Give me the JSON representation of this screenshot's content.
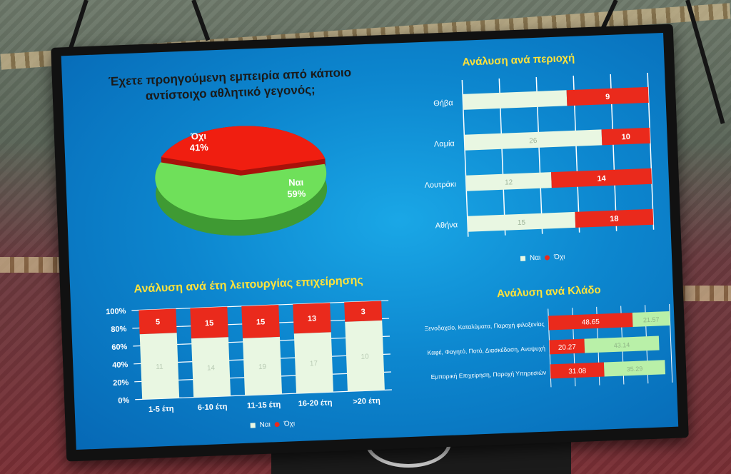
{
  "colors": {
    "yes": "#e9f7e2",
    "no": "#ea2a1c",
    "pie_yes": "#6fe05a",
    "pie_no": "#f01e10",
    "title_yellow": "#ffe23a",
    "grid": "#ffffff"
  },
  "pie": {
    "title_line1": "Έχετε προηγούμενη εμπειρία από κάποιο",
    "title_line2": "αντίστοιχο αθλητικό γεγονός;",
    "no_label": "Όχι",
    "no_value": "41%",
    "yes_label": "Ναι",
    "yes_value": "59%"
  },
  "region": {
    "title": "Ανάλυση ανά περιοχή",
    "legend_yes": "Ναι",
    "legend_no": "Όχι"
  },
  "years": {
    "title": "Ανάλυση ανά έτη λειτουργίας επιχείρησης",
    "legend_yes": "Ναι",
    "legend_no": "Όχι"
  },
  "sector": {
    "title": "Ανάλυση ανά Κλάδο"
  },
  "chart_data": [
    {
      "type": "pie",
      "title": "Έχετε προηγούμενη εμπειρία από κάποιο αντίστοιχο αθλητικό γεγονός;",
      "categories": [
        "Όχι",
        "Ναι"
      ],
      "values": [
        41,
        59
      ]
    },
    {
      "type": "bar",
      "orientation": "horizontal",
      "stacked": true,
      "title": "Ανάλυση ανά περιοχή",
      "categories": [
        "Θήβα",
        "Λαμία",
        "Λουτράκι",
        "Αθήνα"
      ],
      "series": [
        {
          "name": "Ναι",
          "values": [
            null,
            26,
            12,
            15
          ]
        },
        {
          "name": "Όχι",
          "values": [
            9,
            10,
            14,
            18
          ]
        }
      ],
      "bar_shares": [
        {
          "yes": 0.56,
          "no": 0.44
        },
        {
          "yes": 0.74,
          "no": 0.26
        },
        {
          "yes": 0.46,
          "no": 0.54
        },
        {
          "yes": 0.58,
          "no": 0.42
        }
      ],
      "legend": "bottom"
    },
    {
      "type": "bar",
      "stacked": true,
      "title": "Ανάλυση ανά έτη λειτουργίας επιχείρησης",
      "categories": [
        "1-5 έτη",
        "6-10 έτη",
        "11-15 έτη",
        "16-20 έτη",
        ">20 έτη"
      ],
      "yticks": [
        "0%",
        "20%",
        "40%",
        "60%",
        "80%",
        "100%"
      ],
      "ylim": [
        0,
        100
      ],
      "series": [
        {
          "name": "Ναι",
          "values": [
            11,
            14,
            19,
            17,
            10
          ]
        },
        {
          "name": "Όχι",
          "values": [
            5,
            15,
            15,
            13,
            3
          ]
        }
      ],
      "no_share_percent": [
        27,
        34,
        36,
        33,
        22
      ],
      "legend": "bottom"
    },
    {
      "type": "bar",
      "orientation": "horizontal",
      "stacked": true,
      "title": "Ανάλυση ανά Κλάδο",
      "categories": [
        "Ξενοδοχείο, Καταλύματα, Παροχή φιλοξενίας",
        "Καφέ, Φαγητό, Ποτό, Διασκέδαση, Αναψυχή",
        "Εμπορική Επιχείρηση, Παροχή Υπηρεσιών"
      ],
      "series": [
        {
          "name": "Όχι",
          "values": [
            48.65,
            20.27,
            31.08
          ]
        },
        {
          "name": "Ναι",
          "values": [
            21.57,
            43.14,
            35.29
          ]
        }
      ]
    }
  ]
}
